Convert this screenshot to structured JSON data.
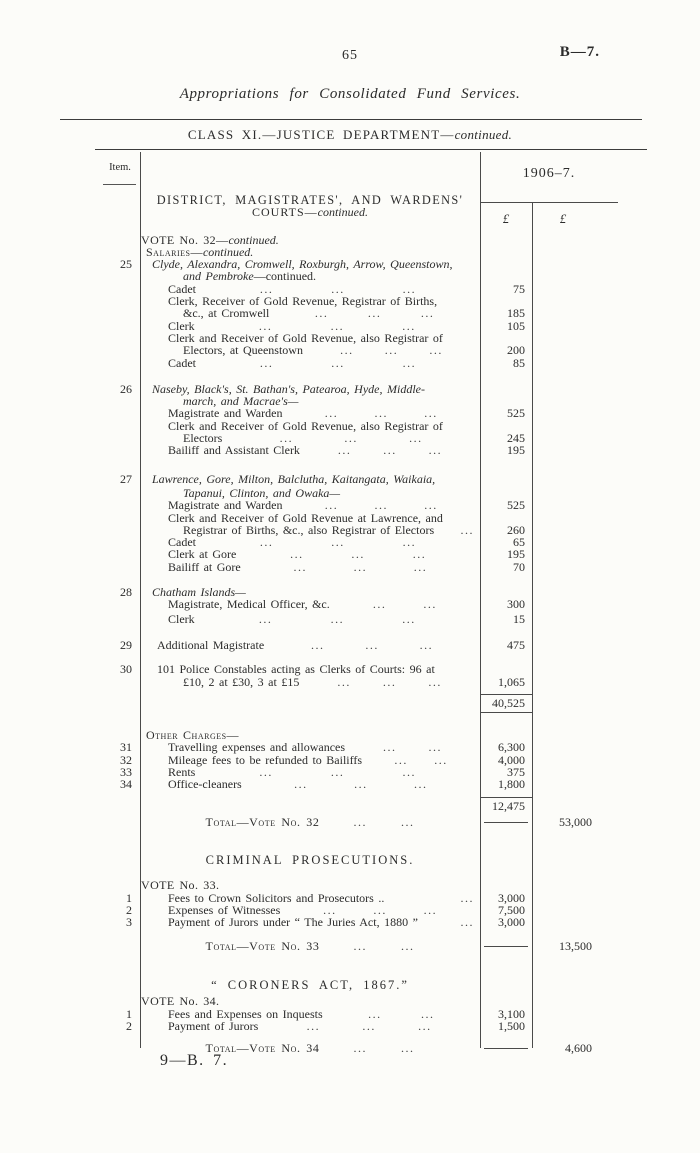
{
  "page": {
    "number": "65",
    "ref": "B—7.",
    "title": "Appropriations for Consolidated Fund Services.",
    "class_heading": "CLASS XI.—JUSTICE DEPARTMENT—",
    "class_heading_suffix": "continued.",
    "footer": "9—B. 7."
  },
  "table": {
    "item_header": "Item.",
    "year_header": "1906–7.",
    "currency_col1": "£",
    "currency_col2": "£",
    "leader_group": "...",
    "rows": [
      {
        "t": "head1",
        "text": "DISTRICT, MAGISTRATES', AND WARDENS'"
      },
      {
        "t": "head2",
        "text": "COURTS—",
        "sfx": "continued."
      },
      {
        "t": "vote",
        "text": "VOTE No. 32—",
        "sfx": "continued.",
        "mt": 15
      },
      {
        "t": "sc",
        "text": "Salaries—",
        "sfx": "continued."
      },
      {
        "t": "place",
        "item": "25",
        "text": "Clyde, Alexandra, Cromwell, Roxburgh, Arrow, Queenstown,"
      },
      {
        "t": "place2",
        "text": "and Pembroke",
        "sfx": "—continued."
      },
      {
        "t": "entry",
        "text": "Cadet",
        "dots": 3,
        "a1": "75"
      },
      {
        "t": "wrap1",
        "text": "Clerk, Receiver of Gold Revenue, Registrar of Births,"
      },
      {
        "t": "wrap2",
        "text": "&c., at Cromwell",
        "dots": 3,
        "a1": "185"
      },
      {
        "t": "entry",
        "text": "Clerk",
        "dots": 3,
        "a1": "105"
      },
      {
        "t": "wrap1",
        "text": "Clerk and Receiver of Gold Revenue, also Registrar of"
      },
      {
        "t": "wrap2",
        "text": "Electors, at Queenstown",
        "dots": 3,
        "a1": "200"
      },
      {
        "t": "entry",
        "text": "Cadet",
        "dots": 3,
        "a1": "85"
      },
      {
        "t": "place",
        "item": "26",
        "text": "Naseby, Black's, St. Bathan's, Patearoa, Hyde, Middle-",
        "mt": 14
      },
      {
        "t": "place2",
        "text": "march, and Macrae's—"
      },
      {
        "t": "entry",
        "text": "Magistrate and Warden",
        "dots": 3,
        "a1": "525"
      },
      {
        "t": "wrap1",
        "text": "Clerk and Receiver of Gold Revenue, also Registrar of"
      },
      {
        "t": "wrap2",
        "text": "Electors",
        "dots": 3,
        "a1": "245"
      },
      {
        "t": "entry",
        "text": "Bailiff and Assistant Clerk",
        "dots": 3,
        "a1": "195"
      },
      {
        "t": "place",
        "item": "27",
        "text": "Lawrence, Gore, Milton, Balclutha, Kaitangata, Waikaia,",
        "mt": 16
      },
      {
        "t": "place2",
        "text": "Tapanui, Clinton, and Owaka—",
        "mt": 2
      },
      {
        "t": "entry",
        "text": "Magistrate and Warden",
        "dots": 3,
        "a1": "525"
      },
      {
        "t": "wrap1",
        "text": "Clerk and Receiver of Gold Revenue at Lawrence, and"
      },
      {
        "t": "wrap2",
        "text": "Registrar of Births, &c., also Registrar of Electors",
        "dots": 1,
        "a1": "260"
      },
      {
        "t": "entry",
        "text": "Cadet",
        "dots": 3,
        "a1": "65"
      },
      {
        "t": "entry",
        "text": "Clerk at Gore",
        "dots": 3,
        "a1": "195"
      },
      {
        "t": "entry",
        "text": "Bailiff at Gore",
        "dots": 3,
        "a1": "70"
      },
      {
        "t": "place",
        "item": "28",
        "text": "Chatham Islands—",
        "mt": 13
      },
      {
        "t": "entry",
        "text": "Magistrate, Medical Officer, &c.",
        "dots": 2,
        "a1": "300"
      },
      {
        "t": "entry",
        "text": "Clerk",
        "dots": 3,
        "a1": "15",
        "mt": 2
      },
      {
        "t": "itemline",
        "item": "29",
        "text": "Additional Magistrate",
        "dots": 3,
        "a1": "475",
        "mt": 14
      },
      {
        "t": "itemline",
        "item": "30",
        "text": "101 Police Constables acting as Clerks of Courts: 96 at",
        "mt": 12
      },
      {
        "t": "wrap2",
        "text": "£10, 2 at £30, 3 at £15",
        "dots": 3,
        "a1": "1,065"
      },
      {
        "t": "sub",
        "a1": "40,525",
        "rb": true,
        "mt": 6
      },
      {
        "t": "sc",
        "text": "Other Charges—",
        "mt": 16
      },
      {
        "t": "entry",
        "item": "31",
        "text": "Travelling expenses and allowances",
        "dots": 2,
        "a1": "6,300"
      },
      {
        "t": "entry",
        "item": "32",
        "text": "Mileage fees to be refunded to Bailiffs",
        "dots": 2,
        "a1": "4,000"
      },
      {
        "t": "entry",
        "item": "33",
        "text": "Rents",
        "dots": 3,
        "a1": "375"
      },
      {
        "t": "entry",
        "item": "34",
        "text": "Office-cleaners",
        "dots": 3,
        "a1": "1,800"
      },
      {
        "t": "sub",
        "a1": "12,475",
        "mt": 6
      },
      {
        "t": "total",
        "text": "Total—Vote No. 32",
        "dots": 2,
        "a2": "53,000",
        "mt": 4
      },
      {
        "t": "section",
        "text": "CRIMINAL PROSECUTIONS.",
        "mt": 26
      },
      {
        "t": "vote",
        "text": "VOTE No. 33.",
        "mt": 13
      },
      {
        "t": "entry",
        "item": "1",
        "text": "Fees to Crown Solicitors and Prosecutors ..",
        "dots": 1,
        "a1": "3,000"
      },
      {
        "t": "entry",
        "item": "2",
        "text": "Expenses of Witnesses",
        "dots": 3,
        "a1": "7,500"
      },
      {
        "t": "entry",
        "item": "3",
        "text": "Payment of Jurors under “ The Juries Act, 1880 ”",
        "dots": 1,
        "a1": "3,000"
      },
      {
        "t": "total",
        "text": "Total—Vote No. 33",
        "dots": 2,
        "a2": "13,500",
        "mt": 11
      },
      {
        "t": "section",
        "text": "“ CORONERS ACT, 1867.”",
        "mt": 27
      },
      {
        "t": "vote",
        "text": "VOTE No. 34.",
        "mt": 4
      },
      {
        "t": "entry",
        "item": "1",
        "text": "Fees and Expenses on Inquests",
        "dots": 2,
        "a1": "3,100"
      },
      {
        "t": "entry",
        "item": "2",
        "text": "Payment of Jurors",
        "dots": 3,
        "a1": "1,500"
      },
      {
        "t": "total",
        "text": "Total—Vote No. 34",
        "dots": 2,
        "a2": "4,600",
        "mt": 10
      }
    ]
  }
}
